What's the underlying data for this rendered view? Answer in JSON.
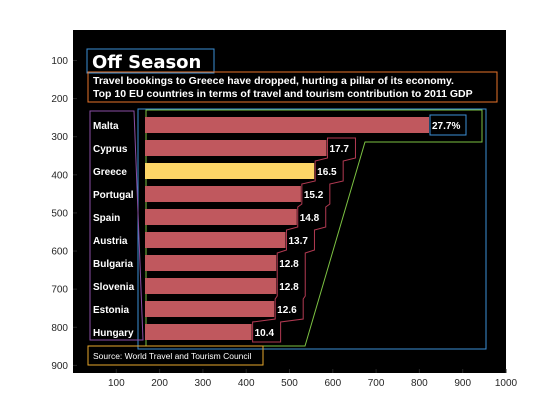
{
  "chart_data": {
    "type": "bar",
    "orientation": "horizontal",
    "title": "Off Season",
    "subtitle_lines": [
      "Travel bookings to Greece have dropped, hurting a pillar of its economy.",
      "Top 10 EU countries in terms of travel and tourism contribution to 2011 GDP"
    ],
    "categories": [
      "Malta",
      "Cyprus",
      "Greece",
      "Portugal",
      "Spain",
      "Austria",
      "Bulgaria",
      "Slovenia",
      "Estonia",
      "Hungary"
    ],
    "value_labels": [
      "27.7%",
      "17.7",
      "16.5",
      "15.2",
      "14.8",
      "13.7",
      "12.8",
      "12.8",
      "12.6",
      "10.4"
    ],
    "values": [
      27.7,
      17.7,
      16.5,
      15.2,
      14.8,
      13.7,
      12.8,
      12.8,
      12.6,
      10.4
    ],
    "highlight": "Greece",
    "source": "Source: World Travel and Tourism Council",
    "axes": {
      "x_ticks": [
        "100",
        "200",
        "300",
        "400",
        "500",
        "600",
        "700",
        "800",
        "900",
        "1000"
      ],
      "y_ticks": [
        "100",
        "200",
        "300",
        "400",
        "500",
        "600",
        "700",
        "800",
        "900"
      ],
      "xlim": [
        0,
        1000
      ],
      "ylim": [
        920,
        20
      ]
    },
    "colors": {
      "background": "#000000",
      "bar": "#c0585e",
      "highlight_bar": "#fdd667",
      "title_box": "#3d8fd6",
      "subtitle_box": "#e8742a",
      "country_box": "#8a4ea3",
      "value_outline": "#b23a52",
      "bars_box": "#3d8fd6",
      "bars_outline": "#7cc242",
      "source_box": "#e8a82c"
    }
  }
}
